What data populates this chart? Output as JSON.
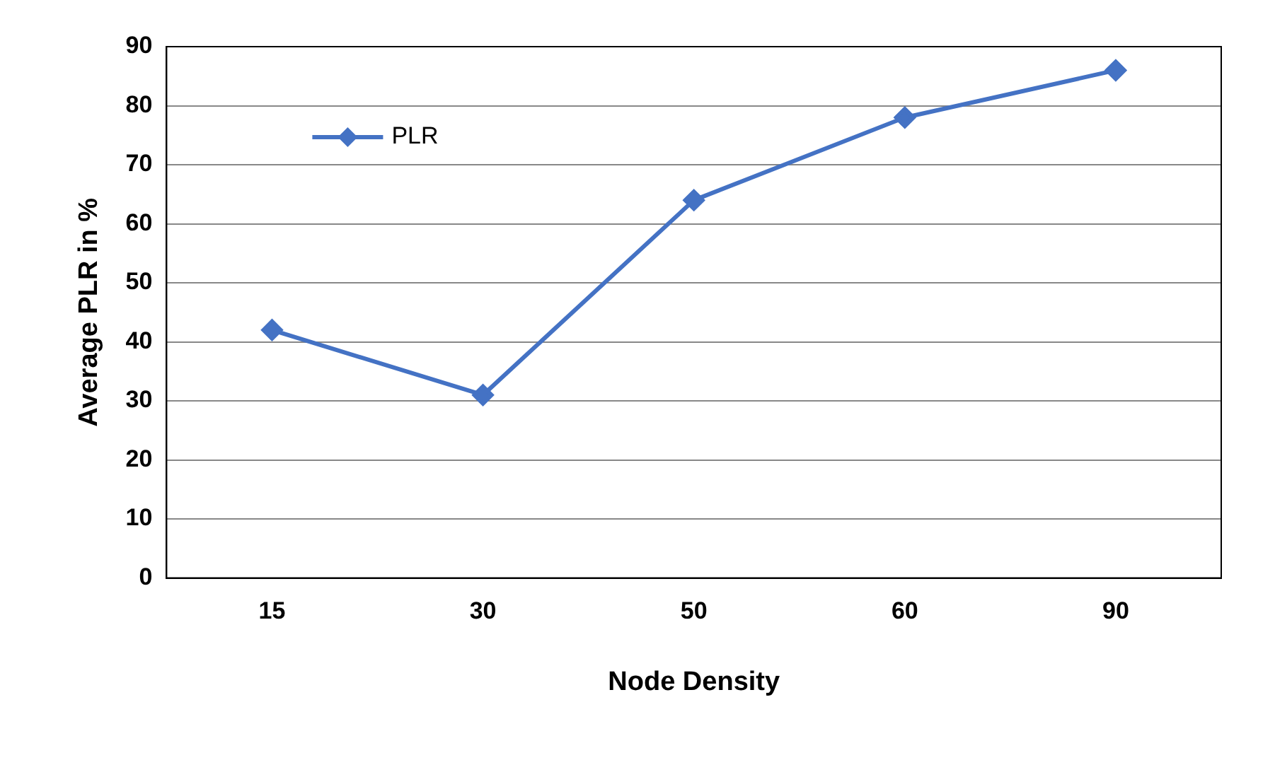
{
  "chart_data": {
    "type": "line",
    "xlabel": "Node Density",
    "ylabel": "Average PLR in %",
    "categories": [
      "15",
      "30",
      "50",
      "60",
      "90"
    ],
    "series": [
      {
        "name": "PLR",
        "color": "#4472c4",
        "values": [
          42,
          31,
          64,
          78,
          86
        ]
      }
    ],
    "ylim": [
      0,
      90
    ],
    "yticks": [
      0,
      10,
      20,
      30,
      40,
      50,
      60,
      70,
      80,
      90
    ],
    "grid": "y",
    "legend": "top left",
    "marker": "diamond",
    "line_style": "solid"
  }
}
